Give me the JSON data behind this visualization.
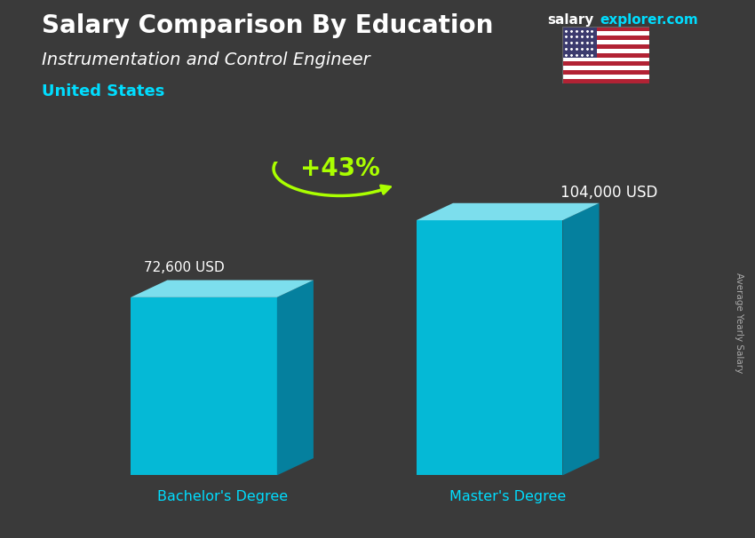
{
  "title_part1": "Salary Comparison By Education",
  "website_salary": "salary",
  "website_explorer": "explorer.com",
  "subtitle": "Instrumentation and Control Engineer",
  "location": "United States",
  "ylabel": "Average Yearly Salary",
  "categories": [
    "Bachelor's Degree",
    "Master's Degree"
  ],
  "values": [
    72600,
    104000
  ],
  "value_labels": [
    "72,600 USD",
    "104,000 USD"
  ],
  "pct_change": "+43%",
  "bg_color": "#3a3a3a",
  "overlay_color": "#1a1a1a",
  "title_color": "#ffffff",
  "subtitle_color": "#ffffff",
  "location_color": "#00ddff",
  "label_color": "#ffffff",
  "category_color": "#00ddff",
  "pct_color": "#aaff00",
  "arc_color": "#aaff00",
  "arrow_color": "#aaff00",
  "website_color1": "#ffffff",
  "website_color2": "#00ddff",
  "face_color": "#00c8e8",
  "top_color": "#80e8f8",
  "side_color": "#0088aa",
  "ylabel_color": "#aaaaaa"
}
